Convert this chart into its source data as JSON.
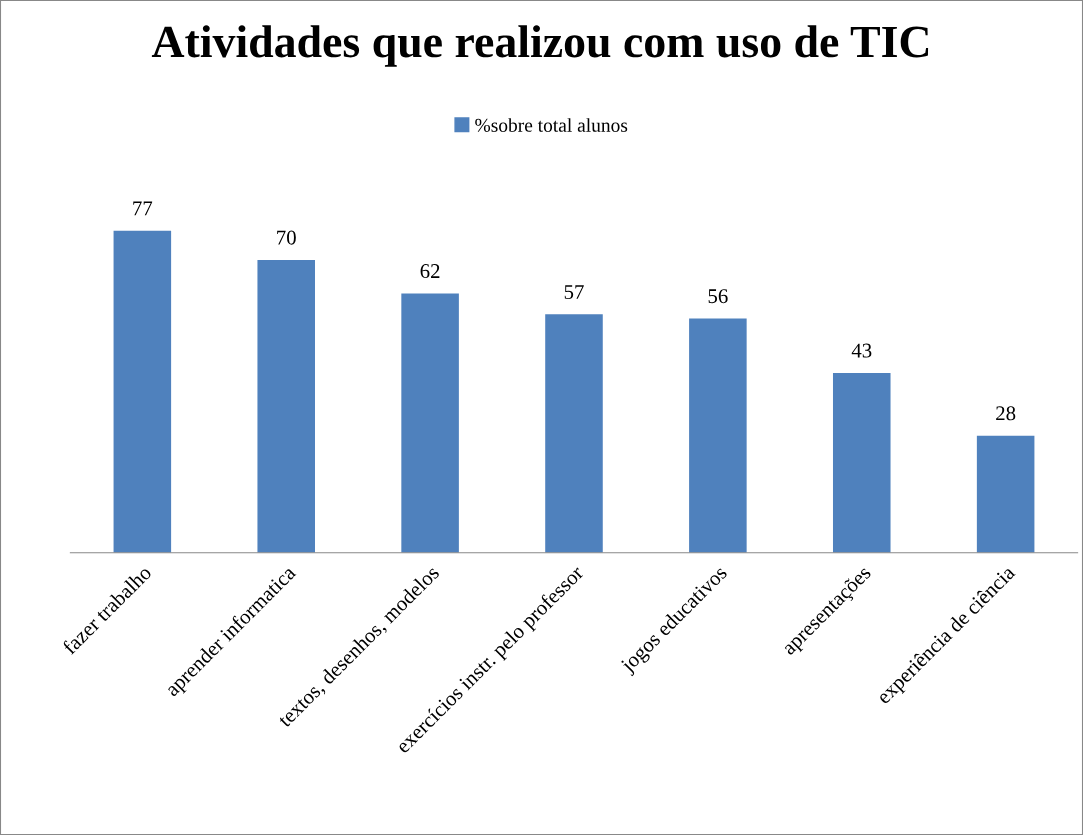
{
  "chart_data": {
    "type": "bar",
    "title": "Atividades que realizou com uso de TIC",
    "categories": [
      "fazer trabalho",
      "aprender informatica",
      "textos, desenhos, modelos",
      "exercícios instr. pelo professor",
      "jogos educativos",
      "apresentações",
      "experiência de ciência"
    ],
    "series": [
      {
        "name": "%sobre total alunos",
        "color": "#4f81bd",
        "values": [
          77,
          70,
          62,
          57,
          56,
          43,
          28
        ]
      }
    ],
    "data_labels": true,
    "legend": "top",
    "grid": false
  }
}
